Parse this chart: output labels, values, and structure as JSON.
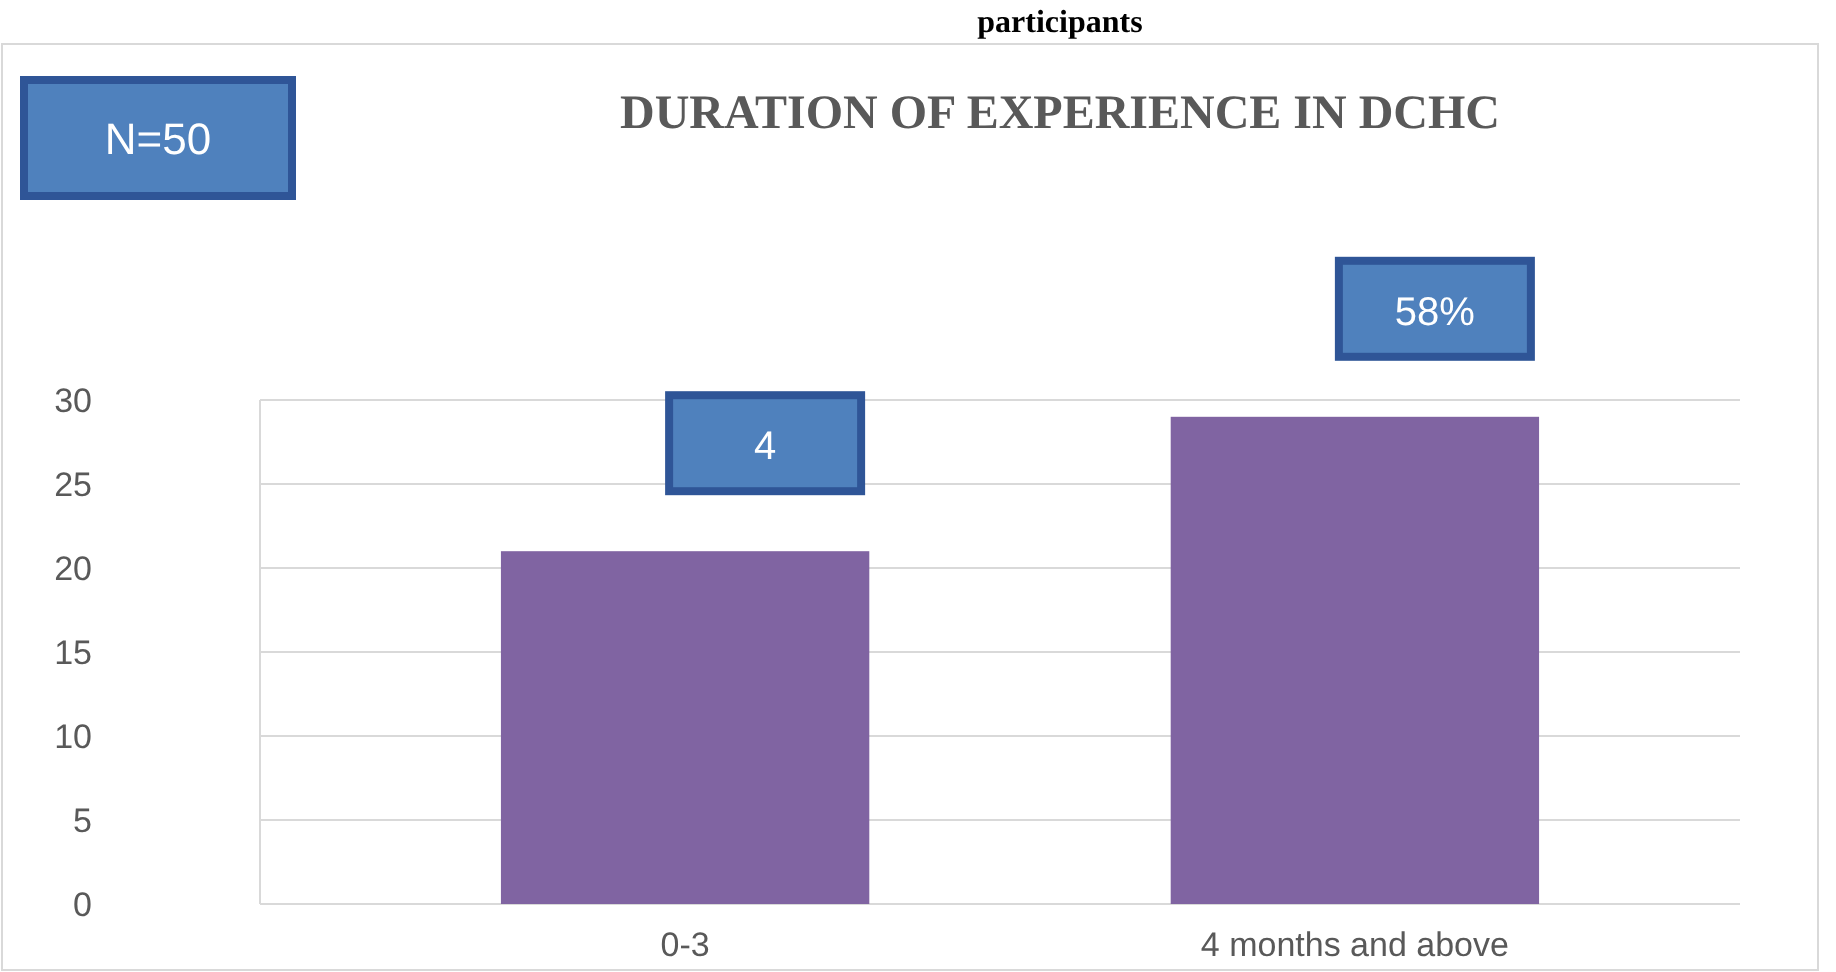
{
  "chart_data": {
    "type": "bar",
    "title": "DURATION OF EXPERIENCE IN DCHC",
    "categories": [
      "0-3",
      "4 months and above"
    ],
    "values": [
      21,
      29
    ],
    "color": "#8064a2",
    "ylim": [
      0,
      30
    ],
    "yticks": [
      0,
      5,
      10,
      15,
      20,
      25,
      30
    ],
    "grid": "y",
    "annotations": [
      "participants",
      "N=50",
      {
        "text": "4",
        "x": "0-3",
        "y": 21
      },
      {
        "text": "58%",
        "x": "4 months and above",
        "y": 29
      }
    ]
  }
}
